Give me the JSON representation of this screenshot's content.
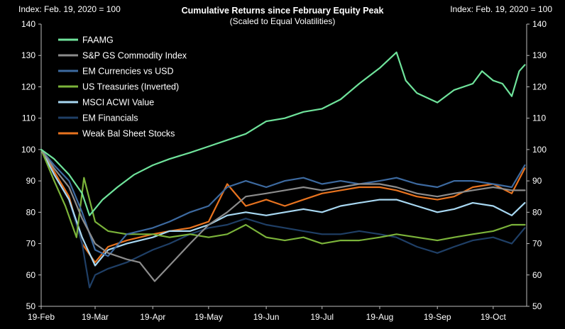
{
  "header": {
    "left_label": "Index: Feb. 19, 2020 = 100",
    "right_label": "Index: Feb. 19, 2020 = 100"
  },
  "chart_data": {
    "type": "line",
    "title": "Cumulative Returns since February Equity Peak",
    "subtitle": "(Scaled to Equal Volatilities)",
    "xlabel": "",
    "ylabel": "Index: Feb. 19, 2020 = 100",
    "ylim": [
      50,
      140
    ],
    "y_ticks": [
      50,
      60,
      70,
      80,
      90,
      100,
      110,
      120,
      130,
      140
    ],
    "x_tick_labels": [
      "19-Feb",
      "19-Mar",
      "19-Apr",
      "19-May",
      "19-Jun",
      "19-Jul",
      "19-Aug",
      "19-Sep",
      "19-Oct"
    ],
    "x_tick_dates": [
      "2020-02-19",
      "2020-03-19",
      "2020-04-19",
      "2020-05-19",
      "2020-06-19",
      "2020-07-19",
      "2020-08-19",
      "2020-09-19",
      "2020-10-19"
    ],
    "xlim": [
      "2020-02-19",
      "2020-11-06"
    ],
    "grid": false,
    "legend_position": "top-left",
    "series": [
      {
        "name": "FAAMG",
        "color": "#6fe39b",
        "x": [
          "2020-02-19",
          "2020-02-26",
          "2020-03-05",
          "2020-03-12",
          "2020-03-16",
          "2020-03-23",
          "2020-03-31",
          "2020-04-09",
          "2020-04-19",
          "2020-04-28",
          "2020-05-09",
          "2020-05-19",
          "2020-05-29",
          "2020-06-08",
          "2020-06-19",
          "2020-06-29",
          "2020-07-09",
          "2020-07-19",
          "2020-07-29",
          "2020-08-08",
          "2020-08-19",
          "2020-08-28",
          "2020-09-02",
          "2020-09-08",
          "2020-09-19",
          "2020-09-28",
          "2020-10-08",
          "2020-10-13",
          "2020-10-19",
          "2020-10-24",
          "2020-10-29",
          "2020-11-02",
          "2020-11-05"
        ],
        "values": [
          100,
          97,
          92,
          86,
          79,
          84,
          88,
          92,
          95,
          97,
          99,
          101,
          103,
          105,
          109,
          110,
          112,
          113,
          116,
          121,
          126,
          131,
          122,
          118,
          115,
          119,
          121,
          125,
          122,
          121,
          117,
          125,
          127
        ]
      },
      {
        "name": "S&P GS Commodity Index",
        "color": "#8c8c8c",
        "x": [
          "2020-02-19",
          "2020-02-26",
          "2020-03-05",
          "2020-03-12",
          "2020-03-19",
          "2020-03-26",
          "2020-04-05",
          "2020-04-12",
          "2020-04-20",
          "2020-04-28",
          "2020-05-09",
          "2020-05-19",
          "2020-05-29",
          "2020-06-08",
          "2020-06-19",
          "2020-06-29",
          "2020-07-09",
          "2020-07-19",
          "2020-07-29",
          "2020-08-08",
          "2020-08-19",
          "2020-08-28",
          "2020-09-08",
          "2020-09-19",
          "2020-09-28",
          "2020-10-08",
          "2020-10-19",
          "2020-10-29",
          "2020-11-05"
        ],
        "values": [
          100,
          94,
          88,
          78,
          70,
          67,
          65,
          64,
          58,
          63,
          70,
          76,
          80,
          85,
          86,
          87,
          88,
          87,
          88,
          89,
          89,
          88,
          86,
          85,
          86,
          87,
          88,
          87,
          87
        ]
      },
      {
        "name": "EM Currencies vs USD",
        "color": "#3d6aa0",
        "x": [
          "2020-02-19",
          "2020-02-26",
          "2020-03-05",
          "2020-03-12",
          "2020-03-19",
          "2020-03-26",
          "2020-04-05",
          "2020-04-19",
          "2020-04-28",
          "2020-05-09",
          "2020-05-19",
          "2020-05-29",
          "2020-06-08",
          "2020-06-19",
          "2020-06-29",
          "2020-07-09",
          "2020-07-19",
          "2020-07-29",
          "2020-08-08",
          "2020-08-19",
          "2020-08-28",
          "2020-09-08",
          "2020-09-19",
          "2020-09-28",
          "2020-10-08",
          "2020-10-19",
          "2020-10-29",
          "2020-11-05"
        ],
        "values": [
          100,
          95,
          90,
          80,
          68,
          66,
          73,
          75,
          77,
          80,
          82,
          88,
          90,
          88,
          90,
          91,
          89,
          90,
          89,
          90,
          91,
          89,
          88,
          90,
          90,
          89,
          88,
          95
        ]
      },
      {
        "name": "US Treasuries (Inverted)",
        "color": "#7bb33a",
        "x": [
          "2020-02-19",
          "2020-02-26",
          "2020-03-03",
          "2020-03-09",
          "2020-03-13",
          "2020-03-19",
          "2020-03-26",
          "2020-04-05",
          "2020-04-19",
          "2020-04-28",
          "2020-05-09",
          "2020-05-19",
          "2020-05-29",
          "2020-06-08",
          "2020-06-19",
          "2020-06-29",
          "2020-07-09",
          "2020-07-19",
          "2020-07-29",
          "2020-08-08",
          "2020-08-19",
          "2020-08-28",
          "2020-09-08",
          "2020-09-19",
          "2020-09-28",
          "2020-10-08",
          "2020-10-19",
          "2020-10-29",
          "2020-11-05"
        ],
        "values": [
          100,
          90,
          82,
          72,
          91,
          77,
          74,
          73,
          73,
          72,
          73,
          72,
          73,
          76,
          72,
          71,
          72,
          70,
          71,
          71,
          72,
          73,
          72,
          71,
          72,
          73,
          74,
          76,
          76
        ]
      },
      {
        "name": "MSCI ACWI Value",
        "color": "#a8d8f2",
        "x": [
          "2020-02-19",
          "2020-02-26",
          "2020-03-05",
          "2020-03-12",
          "2020-03-19",
          "2020-03-26",
          "2020-04-05",
          "2020-04-19",
          "2020-04-28",
          "2020-05-09",
          "2020-05-19",
          "2020-05-29",
          "2020-06-08",
          "2020-06-19",
          "2020-06-29",
          "2020-07-09",
          "2020-07-19",
          "2020-07-29",
          "2020-08-08",
          "2020-08-19",
          "2020-08-28",
          "2020-09-08",
          "2020-09-19",
          "2020-09-28",
          "2020-10-08",
          "2020-10-19",
          "2020-10-29",
          "2020-11-05"
        ],
        "values": [
          100,
          92,
          84,
          72,
          63,
          68,
          70,
          72,
          74,
          74,
          76,
          79,
          80,
          79,
          80,
          81,
          80,
          82,
          83,
          84,
          84,
          82,
          80,
          81,
          83,
          82,
          79,
          83
        ]
      },
      {
        "name": "EM Financials",
        "color": "#1f3f66",
        "x": [
          "2020-02-19",
          "2020-02-26",
          "2020-03-05",
          "2020-03-12",
          "2020-03-16",
          "2020-03-19",
          "2020-03-26",
          "2020-04-05",
          "2020-04-19",
          "2020-04-28",
          "2020-05-09",
          "2020-05-19",
          "2020-05-29",
          "2020-06-08",
          "2020-06-19",
          "2020-06-29",
          "2020-07-09",
          "2020-07-19",
          "2020-07-29",
          "2020-08-08",
          "2020-08-19",
          "2020-08-28",
          "2020-09-08",
          "2020-09-19",
          "2020-09-28",
          "2020-10-08",
          "2020-10-19",
          "2020-10-29",
          "2020-11-05"
        ],
        "values": [
          100,
          92,
          84,
          70,
          56,
          60,
          62,
          64,
          68,
          70,
          73,
          75,
          76,
          78,
          76,
          75,
          74,
          73,
          73,
          74,
          73,
          72,
          69,
          67,
          69,
          71,
          72,
          70,
          75
        ]
      },
      {
        "name": "Weak Bal Sheet Stocks",
        "color": "#e8731f",
        "x": [
          "2020-02-19",
          "2020-02-26",
          "2020-03-05",
          "2020-03-12",
          "2020-03-19",
          "2020-03-26",
          "2020-04-05",
          "2020-04-19",
          "2020-04-28",
          "2020-05-09",
          "2020-05-19",
          "2020-05-29",
          "2020-06-08",
          "2020-06-19",
          "2020-06-29",
          "2020-07-09",
          "2020-07-19",
          "2020-07-29",
          "2020-08-08",
          "2020-08-19",
          "2020-08-28",
          "2020-09-08",
          "2020-09-19",
          "2020-09-28",
          "2020-10-08",
          "2020-10-19",
          "2020-10-29",
          "2020-11-05"
        ],
        "values": [
          100,
          93,
          85,
          70,
          64,
          69,
          71,
          73,
          74,
          75,
          77,
          89,
          82,
          84,
          82,
          84,
          86,
          87,
          88,
          88,
          87,
          85,
          84,
          85,
          88,
          89,
          86,
          94
        ]
      }
    ]
  }
}
